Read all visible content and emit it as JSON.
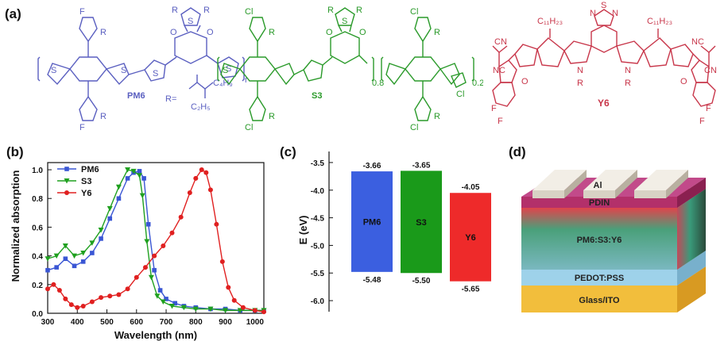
{
  "panels": {
    "a": "(a)",
    "b": "(b)",
    "c": "(c)",
    "d": "(d)"
  },
  "molecules": {
    "pm6": {
      "name": "PM6",
      "color": "#5a5fc0",
      "subscript": "n",
      "substituents": {
        "f": "F",
        "r": "R",
        "r_eq": "R=",
        "c4h9": "C₄H₉",
        "c2h5": "C₂H₅"
      },
      "atoms": {
        "s": "S",
        "o": "O"
      }
    },
    "s3": {
      "name": "S3",
      "color": "#2a9a2a",
      "substituents": {
        "cl": "Cl",
        "r": "R"
      },
      "atoms": {
        "s": "S",
        "o": "O"
      },
      "fractions": [
        "0.8",
        "0.2"
      ]
    },
    "y6": {
      "name": "Y6",
      "color": "#c8364a",
      "substituents": {
        "c11h23": "C₁₁H₂₃",
        "nc": "NC",
        "cn": "CN",
        "f": "F",
        "r": "R"
      },
      "atoms": {
        "s": "S",
        "n": "N",
        "o": "O"
      }
    }
  },
  "chart_data": [
    {
      "type": "line",
      "xlabel": "Wavelength (nm)",
      "ylabel": "Normalized absorption",
      "xlim": [
        300,
        1030
      ],
      "ylim": [
        0,
        1.05
      ],
      "xticks": [
        300,
        400,
        500,
        600,
        700,
        800,
        900,
        1000
      ],
      "yticks": [
        0.0,
        0.2,
        0.4,
        0.6,
        0.8,
        1.0
      ],
      "legend_position": "top-left",
      "series": [
        {
          "name": "PM6",
          "color": "#3a56d4",
          "marker": "square",
          "x": [
            300,
            330,
            360,
            390,
            420,
            450,
            480,
            510,
            540,
            570,
            590,
            610,
            625,
            640,
            660,
            680,
            700,
            730,
            760,
            800,
            850,
            900,
            950,
            1000,
            1030
          ],
          "y": [
            0.3,
            0.32,
            0.38,
            0.33,
            0.36,
            0.42,
            0.52,
            0.66,
            0.8,
            0.94,
            0.98,
            0.99,
            0.94,
            0.62,
            0.3,
            0.16,
            0.1,
            0.07,
            0.05,
            0.04,
            0.03,
            0.03,
            0.02,
            0.02,
            0.02
          ]
        },
        {
          "name": "S3",
          "color": "#1fa01f",
          "marker": "triangle-down",
          "x": [
            300,
            330,
            360,
            390,
            420,
            450,
            480,
            510,
            540,
            570,
            590,
            610,
            620,
            635,
            650,
            670,
            690,
            720,
            760,
            800,
            850,
            900,
            950,
            1000,
            1030
          ],
          "y": [
            0.38,
            0.4,
            0.47,
            0.4,
            0.42,
            0.49,
            0.58,
            0.73,
            0.88,
            1.0,
            0.99,
            0.96,
            0.82,
            0.5,
            0.25,
            0.12,
            0.08,
            0.05,
            0.04,
            0.03,
            0.03,
            0.02,
            0.02,
            0.02,
            0.02
          ]
        },
        {
          "name": "Y6",
          "color": "#e02020",
          "marker": "circle",
          "x": [
            300,
            320,
            340,
            360,
            380,
            400,
            420,
            450,
            480,
            510,
            540,
            570,
            600,
            630,
            660,
            690,
            720,
            750,
            780,
            800,
            820,
            835,
            850,
            870,
            890,
            910,
            930,
            960,
            1000,
            1030
          ],
          "y": [
            0.17,
            0.2,
            0.16,
            0.1,
            0.06,
            0.04,
            0.05,
            0.08,
            0.11,
            0.12,
            0.13,
            0.17,
            0.25,
            0.32,
            0.4,
            0.47,
            0.56,
            0.67,
            0.84,
            0.94,
            1.0,
            0.98,
            0.86,
            0.62,
            0.36,
            0.18,
            0.09,
            0.04,
            0.02,
            0.01
          ]
        }
      ]
    },
    {
      "type": "bar",
      "ylabel": "E (eV)",
      "ylim": [
        -6.2,
        -3.3
      ],
      "yticks": [
        -3.5,
        -4.0,
        -4.5,
        -5.0,
        -5.5,
        -6.0
      ],
      "ytick_labels": [
        "-3.5",
        "-4.0",
        "-4.5",
        "-5.0",
        "-5.5",
        "-6.0"
      ],
      "bars": [
        {
          "name": "PM6",
          "lumo": -3.66,
          "homo": -5.48,
          "lumo_label": "-3.66",
          "homo_label": "-5.48",
          "color": "#3b5fe0"
        },
        {
          "name": "S3",
          "lumo": -3.65,
          "homo": -5.5,
          "lumo_label": "-3.65",
          "homo_label": "-5.50",
          "color": "#1a9a1a"
        },
        {
          "name": "Y6",
          "lumo": -4.05,
          "homo": -5.65,
          "lumo_label": "-4.05",
          "homo_label": "-5.65",
          "color": "#ee2a2a"
        }
      ]
    }
  ],
  "device": {
    "layers": [
      {
        "name": "Al",
        "color": "#e8e4da"
      },
      {
        "name": "PDIN",
        "color": "#b8306a"
      },
      {
        "name": "PM6:S3:Y6",
        "color": "#3a8a6a"
      },
      {
        "name": "PEDOT:PSS",
        "color": "#9ad0e8"
      },
      {
        "name": "Glass/ITO",
        "color": "#f0c040"
      }
    ]
  }
}
